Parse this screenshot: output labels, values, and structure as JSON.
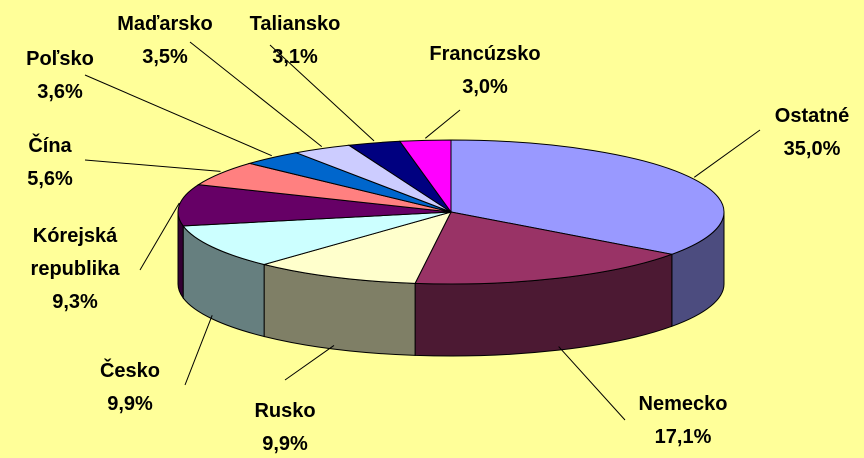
{
  "chart_data": {
    "type": "pie",
    "3d": true,
    "categories": [
      "Ostatné",
      "Nemecko",
      "Rusko",
      "Česko",
      "Kórejská republika",
      "Čína",
      "Poľsko",
      "Maďarsko",
      "Taliansko",
      "Francúzsko"
    ],
    "values": [
      35.0,
      17.1,
      9.9,
      9.9,
      9.3,
      5.6,
      3.6,
      3.5,
      3.1,
      3.0
    ],
    "value_labels": [
      "35,0%",
      "17,1%",
      "9,9%",
      "9,9%",
      "9,3%",
      "5,6%",
      "3,6%",
      "3,5%",
      "3,1%",
      "3,0%"
    ],
    "colors": [
      "#9999ff",
      "#993366",
      "#ffffcc",
      "#ccffff",
      "#660066",
      "#ff8080",
      "#0066cc",
      "#ccccff",
      "#000080",
      "#ff00ff"
    ]
  }
}
